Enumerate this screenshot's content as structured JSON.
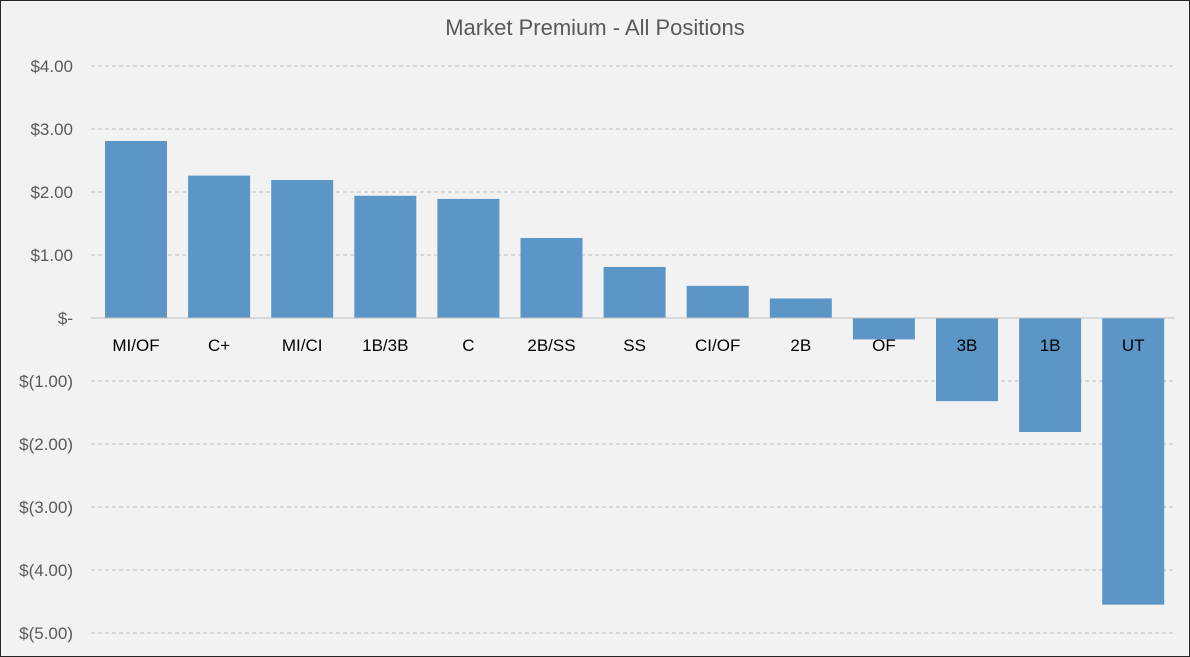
{
  "chart_data": {
    "type": "bar",
    "title": "Market Premium - All Positions",
    "xlabel": "",
    "ylabel": "",
    "categories": [
      "MI/OF",
      "C+",
      "MI/CI",
      "1B/3B",
      "C",
      "2B/SS",
      "SS",
      "CI/OF",
      "2B",
      "OF",
      "3B",
      "1B",
      "UT"
    ],
    "values": [
      2.81,
      2.26,
      2.19,
      1.94,
      1.89,
      1.27,
      0.81,
      0.51,
      0.31,
      -0.34,
      -1.32,
      -1.81,
      -4.55
    ],
    "ylim": [
      -5,
      4
    ],
    "yticks": [
      4,
      3,
      2,
      1,
      0,
      -1,
      -2,
      -3,
      -4,
      -5
    ],
    "ytick_labels": [
      "$4.00",
      "$3.00",
      "$2.00",
      "$1.00",
      "$-",
      "$(1.00)",
      "$(2.00)",
      "$(3.00)",
      "$(4.00)",
      "$(5.00)"
    ],
    "grid": true,
    "legend": "none",
    "bar_color": "#5b96c7"
  }
}
